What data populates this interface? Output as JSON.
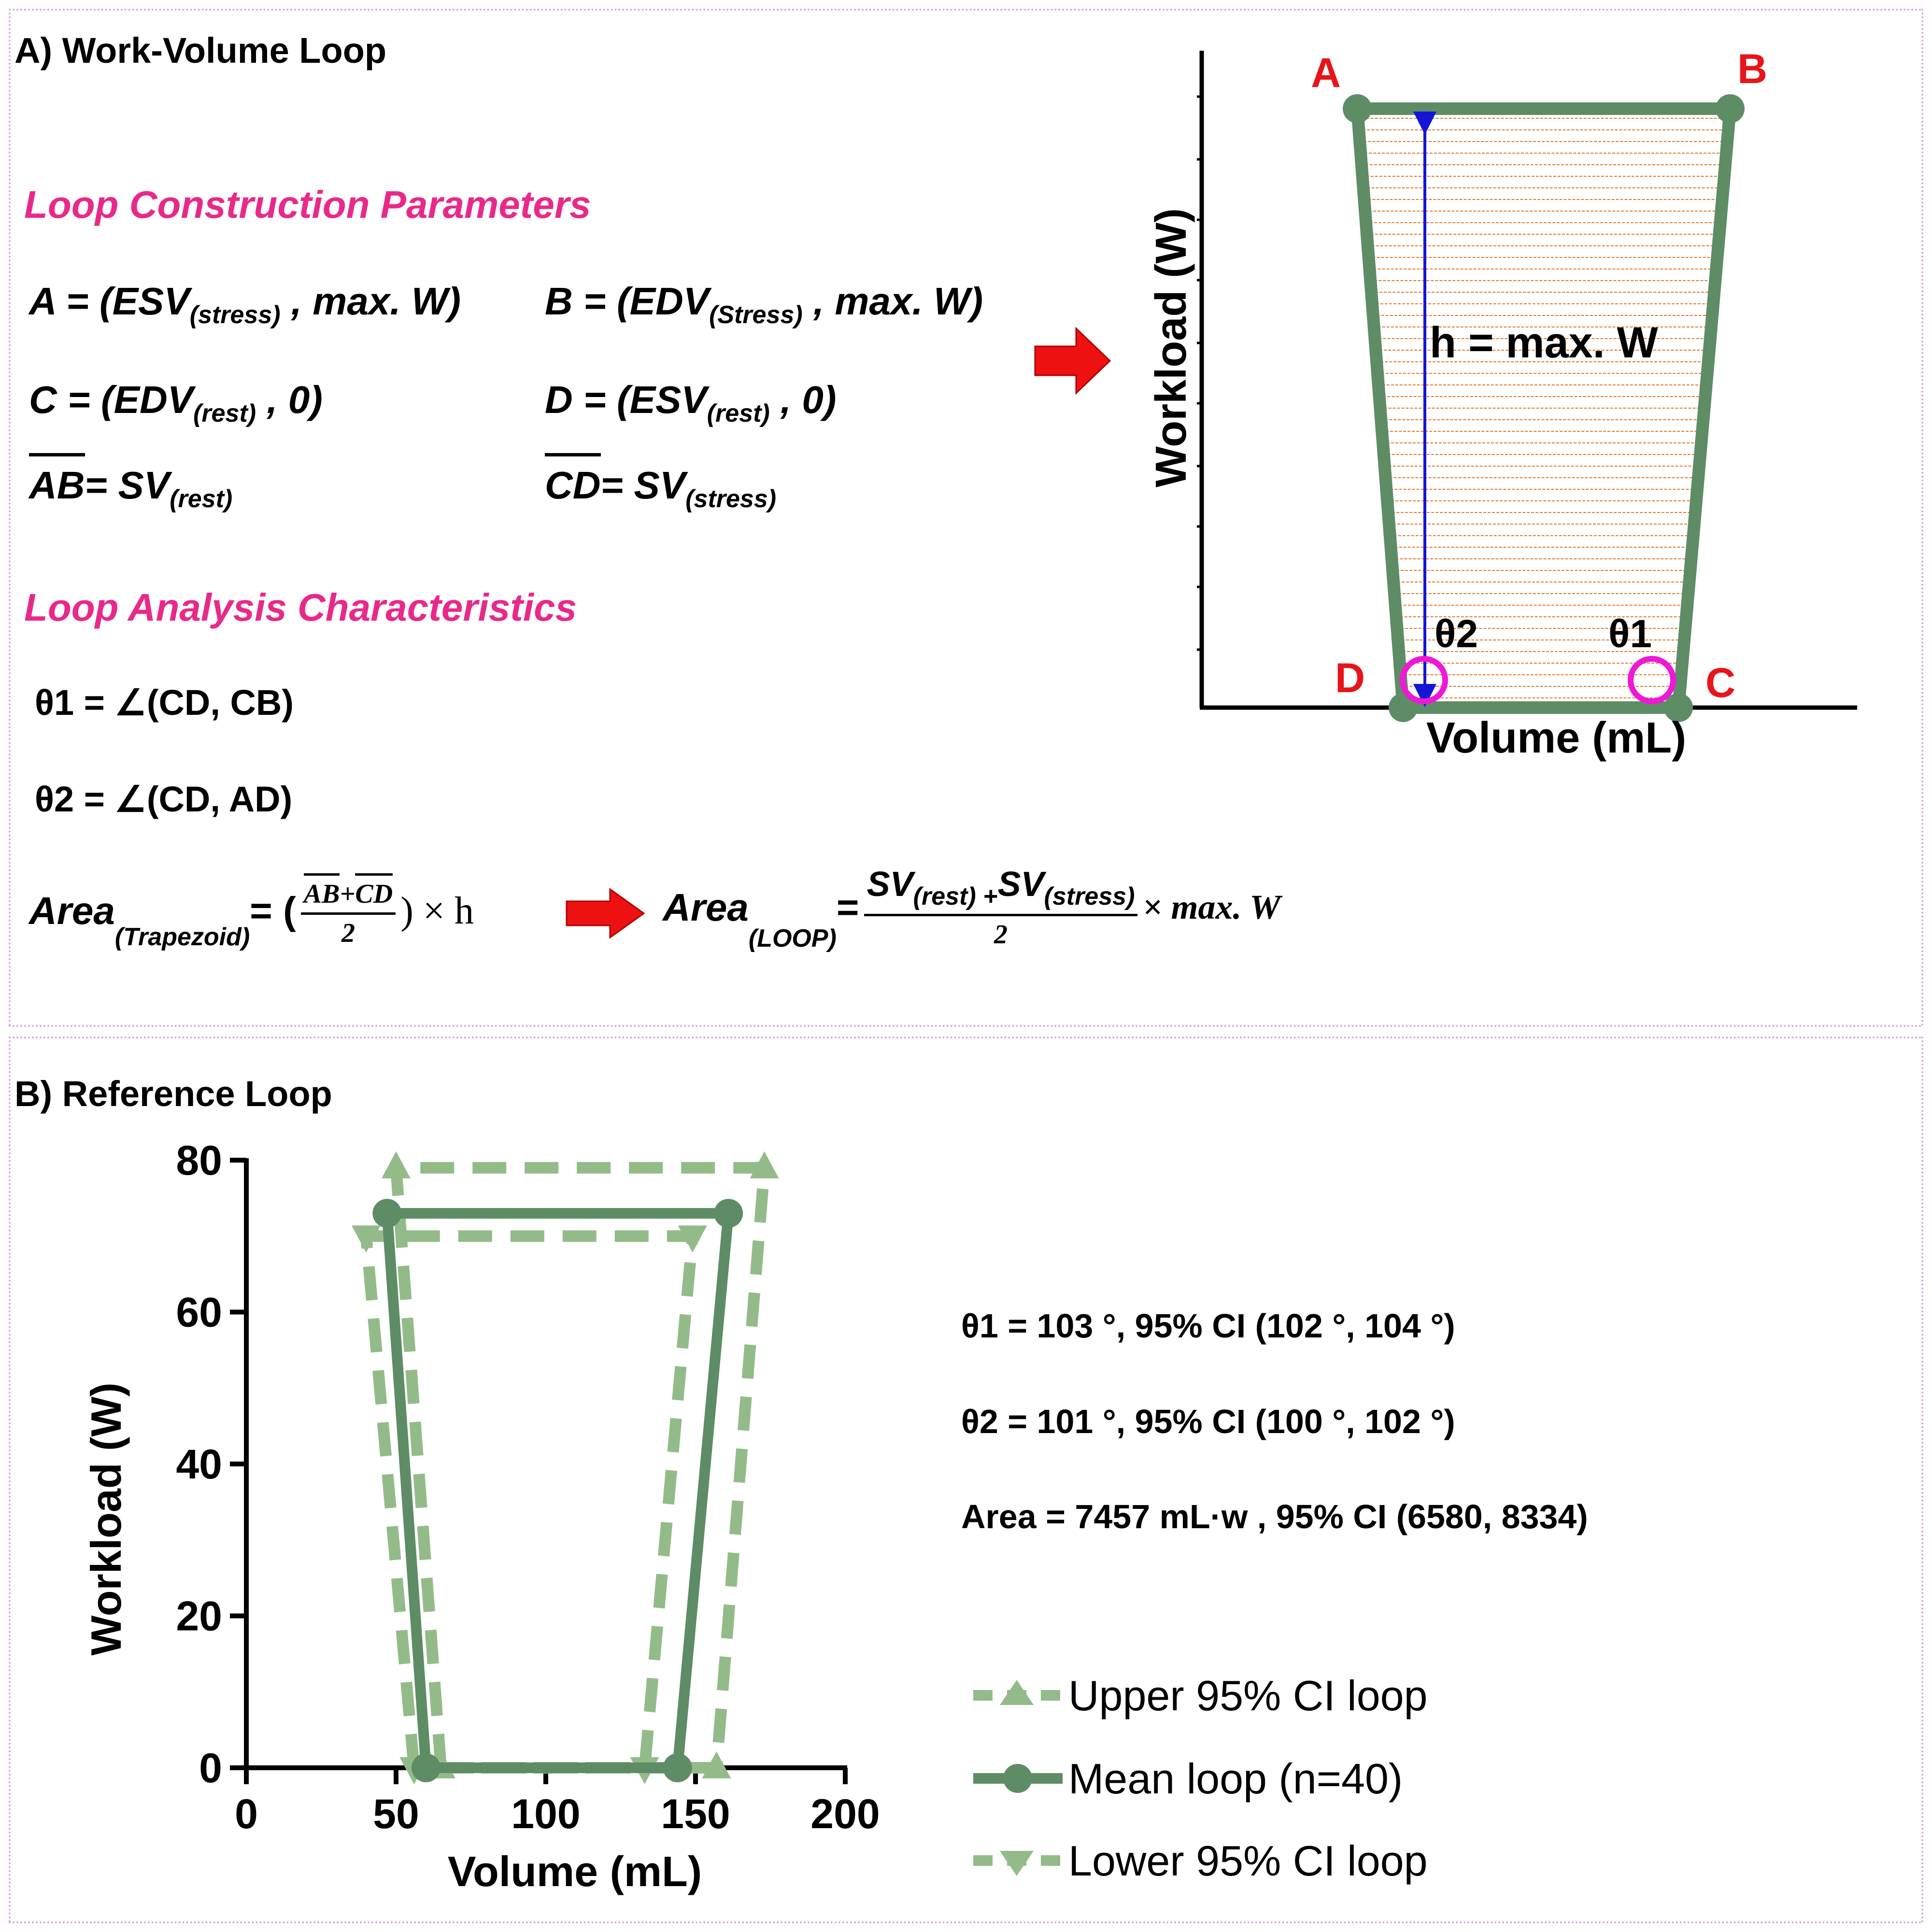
{
  "colors": {
    "accent_pink": "#e8298a",
    "loop_mean": "#5e8c65",
    "loop_ci": "#93bb89",
    "vertex_label": "#e8141b",
    "angle_marker": "#ee18d6",
    "height_arrow": "#1515d6",
    "hatch": "#e07b2a",
    "arrow_fill": "#ee1111"
  },
  "panel_a": {
    "title": "A) Work-Volume Loop",
    "construction_heading": "Loop Construction Parameters",
    "eq_a": {
      "lhs": "A = (ESV",
      "sub": "(stress)",
      "rhs": " , max. W)"
    },
    "eq_b": {
      "lhs": "B = (EDV",
      "sub": "(Stress)",
      "rhs": " , max. W)"
    },
    "eq_c": {
      "lhs": "C = (EDV",
      "sub": "(rest)",
      "rhs": " , 0)"
    },
    "eq_d": {
      "lhs": "D = (ESV",
      "sub": "(rest)",
      "rhs": " , 0)"
    },
    "eq_ab": {
      "seg": "AB",
      "rhs": "= SV",
      "sub": "(rest)"
    },
    "eq_cd": {
      "seg": "CD",
      "rhs": "= SV",
      "sub": "(stress)"
    },
    "analysis_heading": "Loop Analysis Characteristics",
    "theta1_eq": "θ1  = ∠(CD, CB)",
    "theta2_eq": "θ2 = ∠(CD, AD)",
    "area_trap": {
      "label": "Area ",
      "sub": "(Trapezoid)",
      "eq": "= (",
      "num_ab": "AB",
      "num_plus": "+",
      "num_cd": "CD",
      "den": "2",
      "tail": ") × h"
    },
    "area_loop": {
      "label": "Area ",
      "sub": "(LOOP)",
      "eq": "=",
      "num_sv1": "SV",
      "num_sub1": "(rest)",
      "num_plus": " +",
      "num_sv2": "SV",
      "num_sub2": "(stress)",
      "den": "2",
      "tail": "× max. W"
    },
    "diagram": {
      "ylabel": "Workload (W)",
      "xlabel": "Volume (mL)",
      "vertex_a": "A",
      "vertex_b": "B",
      "vertex_c": "C",
      "vertex_d": "D",
      "height_label": "h = max. W",
      "theta1": "θ1",
      "theta2": "θ2"
    }
  },
  "panel_b": {
    "title": "B) Reference Loop",
    "stats": [
      "θ1 = 103 °, 95% CI (102 °, 104 °)",
      "θ2 = 101 °, 95% CI (100 °, 102 °)",
      "Area = 7457 mL·w , 95% CI (6580, 8334)"
    ]
  },
  "chart_data": {
    "type": "line",
    "title": "",
    "xlabel": "Volume (mL)",
    "ylabel": "Workload (W)",
    "xlim": [
      0,
      200
    ],
    "ylim": [
      0,
      80
    ],
    "xticks": [
      0,
      50,
      100,
      150,
      200
    ],
    "yticks": [
      0,
      20,
      40,
      60,
      80
    ],
    "grid": false,
    "legend_position": "right",
    "series": [
      {
        "name": "Upper 95% CI loop",
        "style": "dashed",
        "marker": "triangle-up",
        "color": "#93bb89",
        "x": [
          65,
          50,
          173,
          157,
          65
        ],
        "y": [
          0,
          79,
          79,
          0,
          0
        ]
      },
      {
        "name": "Mean loop (n=40)",
        "style": "solid",
        "marker": "circle",
        "color": "#5e8c65",
        "x": [
          60,
          47,
          161,
          144,
          60
        ],
        "y": [
          0,
          73,
          73,
          0,
          0
        ]
      },
      {
        "name": "Lower 95% CI loop",
        "style": "dashed",
        "marker": "triangle-down",
        "color": "#93bb89",
        "x": [
          56,
          40,
          149,
          133,
          56
        ],
        "y": [
          0,
          70,
          70,
          0,
          0
        ]
      }
    ]
  }
}
